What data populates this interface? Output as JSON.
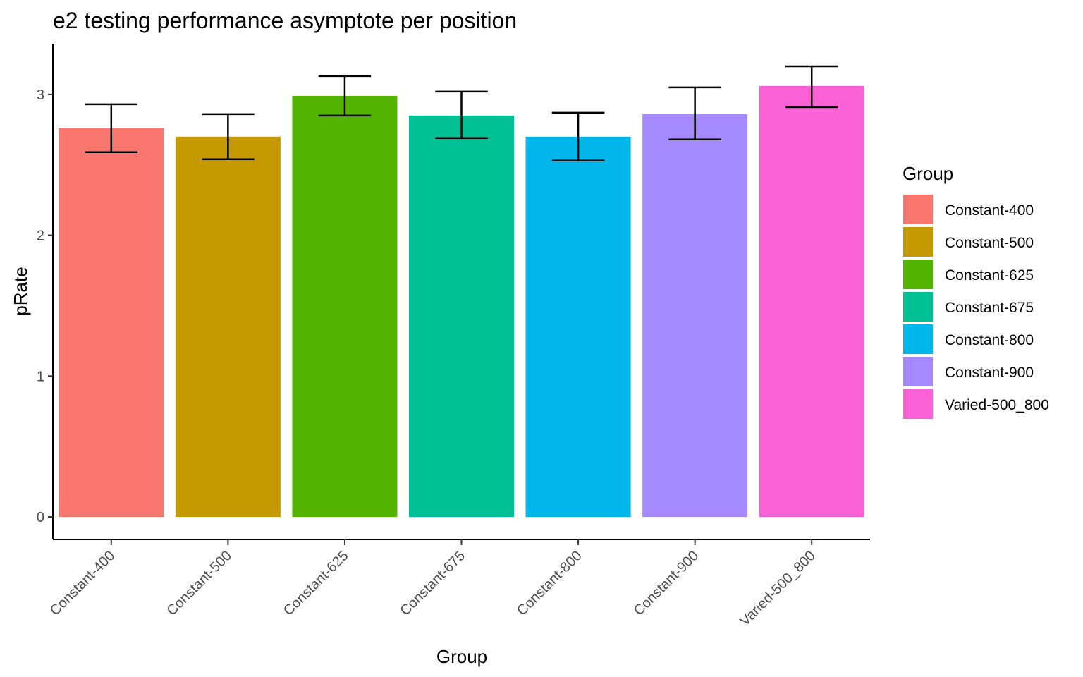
{
  "chart_data": {
    "type": "bar",
    "title": "e2 testing performance asymptote per position",
    "xlabel": "Group",
    "ylabel": "pRate",
    "categories": [
      "Constant-400",
      "Constant-500",
      "Constant-625",
      "Constant-675",
      "Constant-800",
      "Constant-900",
      "Varied-500_800"
    ],
    "values": [
      2.76,
      2.7,
      2.99,
      2.85,
      2.7,
      2.86,
      3.06
    ],
    "error_bars": {
      "lower": [
        2.59,
        2.54,
        2.85,
        2.69,
        2.53,
        2.68,
        2.91
      ],
      "upper": [
        2.93,
        2.86,
        3.13,
        3.02,
        2.87,
        3.05,
        3.2
      ]
    },
    "colors": [
      "#F8766D",
      "#C49A00",
      "#53B400",
      "#00C094",
      "#00B6EB",
      "#A58AFF",
      "#FB61D7"
    ],
    "ylim": [
      -0.16,
      3.36
    ],
    "yticks": [
      "0",
      "1",
      "2",
      "3"
    ],
    "grid": false,
    "legend": {
      "title": "Group",
      "position": "right",
      "entries": [
        "Constant-400",
        "Constant-500",
        "Constant-625",
        "Constant-675",
        "Constant-800",
        "Constant-900",
        "Varied-500_800"
      ]
    }
  }
}
